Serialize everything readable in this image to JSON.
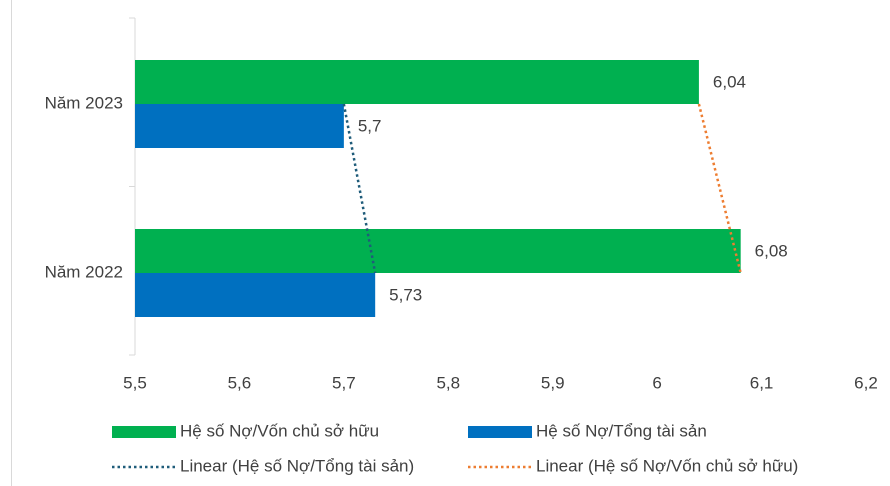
{
  "chart_data": {
    "type": "bar",
    "orientation": "horizontal",
    "categories": [
      "Năm 2023",
      "Năm 2022"
    ],
    "series": [
      {
        "name": "Hệ số Nợ/Vốn chủ sở hữu",
        "values": [
          6.04,
          6.08
        ],
        "labels": [
          "6,04",
          "6,08"
        ],
        "color": "#00b050"
      },
      {
        "name": "Hệ số Nợ/Tổng tài sản",
        "values": [
          5.7,
          5.73
        ],
        "labels": [
          "5,7",
          "5,73"
        ],
        "color": "#0070c0"
      }
    ],
    "trendlines": [
      {
        "name": "Linear (Hệ số Nợ/Tổng tài sản)",
        "series_index": 1,
        "color": "#1f5c7a",
        "style": "dotted"
      },
      {
        "name": "Linear (Hệ số Nợ/Vốn chủ sở hữu)",
        "series_index": 0,
        "color": "#ed7d31",
        "style": "dotted"
      }
    ],
    "xlim": [
      5.5,
      6.2
    ],
    "ticks": [
      5.5,
      5.6,
      5.7,
      5.8,
      5.9,
      6.0,
      6.1,
      6.2
    ],
    "tick_labels": [
      "5,5",
      "5,6",
      "5,7",
      "5,8",
      "5,9",
      "6",
      "6,1",
      "6,2"
    ],
    "grid": false,
    "legend_position": "bottom"
  }
}
